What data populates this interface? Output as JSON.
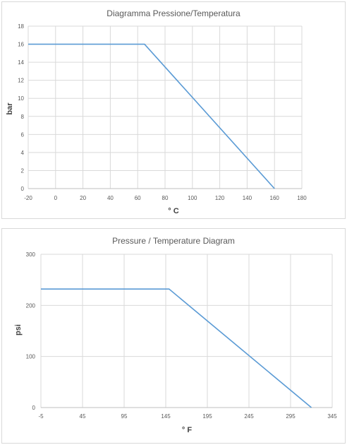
{
  "colors": {
    "series": "#5b9bd5",
    "grid": "#d9d9d9",
    "text": "#595959"
  },
  "chart_data": [
    {
      "type": "line",
      "title": "Diagramma Pressione/Temperatura",
      "xlabel": "° C",
      "ylabel": "bar",
      "xlim": [
        -20,
        180
      ],
      "ylim": [
        0,
        18
      ],
      "xticks": [
        -20,
        0,
        20,
        40,
        60,
        80,
        100,
        120,
        140,
        160,
        180
      ],
      "yticks": [
        0,
        2,
        4,
        6,
        8,
        10,
        12,
        14,
        16,
        18
      ],
      "grid": true,
      "series": [
        {
          "x": [
            -20,
            65,
            160
          ],
          "y": [
            16,
            16,
            0
          ]
        }
      ]
    },
    {
      "type": "line",
      "title": "Pressure / Temperature Diagram",
      "xlabel": "° F",
      "ylabel": "psi",
      "xlim": [
        -5,
        345
      ],
      "ylim": [
        0,
        300
      ],
      "xticks": [
        -5,
        45,
        95,
        145,
        195,
        245,
        295,
        345
      ],
      "yticks": [
        0,
        100,
        200,
        300
      ],
      "grid": true,
      "series": [
        {
          "x": [
            -5,
            149,
            320
          ],
          "y": [
            232,
            232,
            0
          ]
        }
      ]
    }
  ]
}
